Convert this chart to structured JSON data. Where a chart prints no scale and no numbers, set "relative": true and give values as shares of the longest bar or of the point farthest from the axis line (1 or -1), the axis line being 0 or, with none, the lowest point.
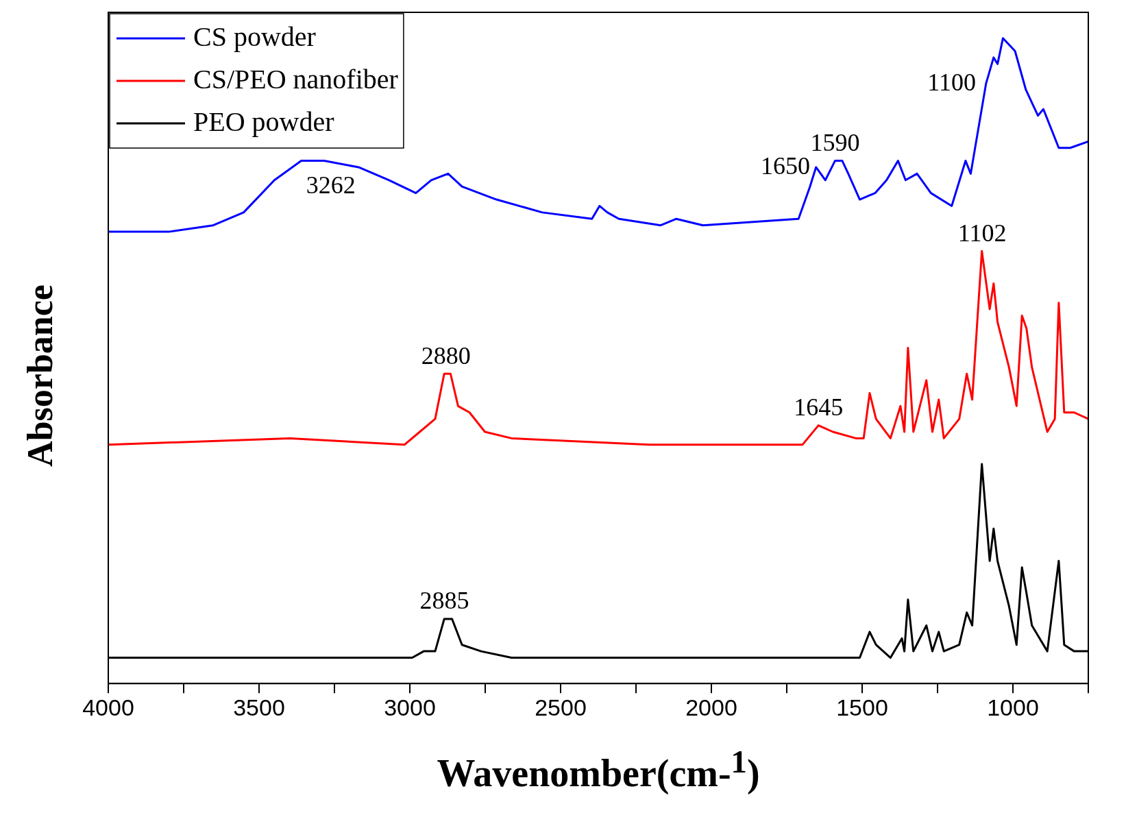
{
  "chart_data": {
    "type": "line",
    "xlabel": "Wavenomber(cm-$^{1}$)",
    "ylabel": "Absorbance",
    "relative": true,
    "xlim": [
      4000,
      750
    ],
    "xticks": [
      4000,
      {
        "value": 3750,
        "label": null
      },
      3500,
      {
        "value": 3250,
        "label": null
      },
      3000,
      {
        "value": 2750,
        "label": null
      },
      2500,
      {
        "value": 2250,
        "label": null
      },
      2000,
      {
        "value": 1750,
        "label": null
      },
      1500,
      {
        "value": 1250,
        "label": null
      },
      1000,
      {
        "value": 750,
        "label": null
      }
    ],
    "grid": false,
    "legend": "top left",
    "marker": "none",
    "line_style": "solid",
    "series": [
      {
        "name": "CS powder",
        "color": "#0000ff",
        "x": [
          4000,
          3800,
          3652,
          3551,
          3449,
          3360,
          3284,
          3170,
          3069,
          2980,
          2929,
          2873,
          2827,
          2713,
          2561,
          2396,
          2371,
          2345,
          2307,
          2168,
          2117,
          2028,
          1711,
          1673,
          1653,
          1622,
          1590,
          1566,
          1546,
          1508,
          1457,
          1419,
          1381,
          1356,
          1318,
          1272,
          1203,
          1157,
          1140,
          1089,
          1064,
          1051,
          1033,
          993,
          957,
          937,
          917,
          899,
          848,
          810,
          750
        ],
        "values": [
          0.7,
          0.7,
          0.71,
          0.73,
          0.78,
          0.81,
          0.81,
          0.8,
          0.78,
          0.76,
          0.78,
          0.79,
          0.77,
          0.75,
          0.73,
          0.72,
          0.74,
          0.73,
          0.72,
          0.71,
          0.72,
          0.71,
          0.72,
          0.77,
          0.8,
          0.78,
          0.81,
          0.81,
          0.79,
          0.75,
          0.76,
          0.78,
          0.81,
          0.78,
          0.79,
          0.76,
          0.74,
          0.81,
          0.79,
          0.93,
          0.97,
          0.96,
          1,
          0.98,
          0.92,
          0.9,
          0.88,
          0.89,
          0.83,
          0.83,
          0.84
        ]
      },
      {
        "name": "CS/PEO nanofiber",
        "color": "#ff0000",
        "x": [
          4000,
          3398,
          3018,
          2967,
          2916,
          2886,
          2865,
          2840,
          2802,
          2751,
          2663,
          2206,
          1698,
          1645,
          1597,
          1521,
          1495,
          1475,
          1454,
          1406,
          1373,
          1360,
          1348,
          1330,
          1287,
          1267,
          1246,
          1229,
          1178,
          1153,
          1135,
          1103,
          1077,
          1064,
          1051,
          1013,
          988,
          970,
          955,
          937,
          886,
          861,
          848,
          830,
          797,
          750
        ],
        "values": [
          0.37,
          0.38,
          0.37,
          0.39,
          0.41,
          0.48,
          0.48,
          0.43,
          0.42,
          0.39,
          0.38,
          0.37,
          0.37,
          0.4,
          0.39,
          0.38,
          0.38,
          0.45,
          0.41,
          0.38,
          0.43,
          0.39,
          0.52,
          0.39,
          0.47,
          0.39,
          0.44,
          0.38,
          0.41,
          0.48,
          0.44,
          0.67,
          0.58,
          0.62,
          0.56,
          0.49,
          0.43,
          0.57,
          0.55,
          0.49,
          0.39,
          0.41,
          0.59,
          0.42,
          0.42,
          0.41
        ]
      },
      {
        "name": "PEO powder",
        "color": "#000000",
        "x": [
          4000,
          2992,
          2954,
          2916,
          2886,
          2860,
          2827,
          2764,
          2663,
          1508,
          1475,
          1454,
          1406,
          1368,
          1360,
          1348,
          1330,
          1287,
          1267,
          1246,
          1229,
          1178,
          1153,
          1135,
          1103,
          1077,
          1064,
          1051,
          1013,
          988,
          970,
          955,
          937,
          886,
          848,
          830,
          797,
          750
        ],
        "values": [
          0.04,
          0.04,
          0.05,
          0.05,
          0.1,
          0.1,
          0.06,
          0.05,
          0.04,
          0.04,
          0.08,
          0.06,
          0.04,
          0.07,
          0.05,
          0.13,
          0.05,
          0.09,
          0.05,
          0.08,
          0.05,
          0.06,
          0.11,
          0.09,
          0.34,
          0.19,
          0.24,
          0.19,
          0.12,
          0.06,
          0.18,
          0.14,
          0.09,
          0.05,
          0.19,
          0.06,
          0.05,
          0.05
        ]
      }
    ],
    "annotations": [
      {
        "text": "3262",
        "x": 3262,
        "y": 0.81
      },
      {
        "text": "1650",
        "x": 1650,
        "y": 0.8
      },
      {
        "text": "1590",
        "x": 1590,
        "y": 0.81
      },
      {
        "text": "1100",
        "x": 1100,
        "y": 0.93
      },
      {
        "text": "2880",
        "x": 2880,
        "y": 0.48
      },
      {
        "text": "1645",
        "x": 1645,
        "y": 0.4
      },
      {
        "text": "1102",
        "x": 1102,
        "y": 0.67
      },
      {
        "text": "2885",
        "x": 2885,
        "y": 0.1
      }
    ]
  }
}
